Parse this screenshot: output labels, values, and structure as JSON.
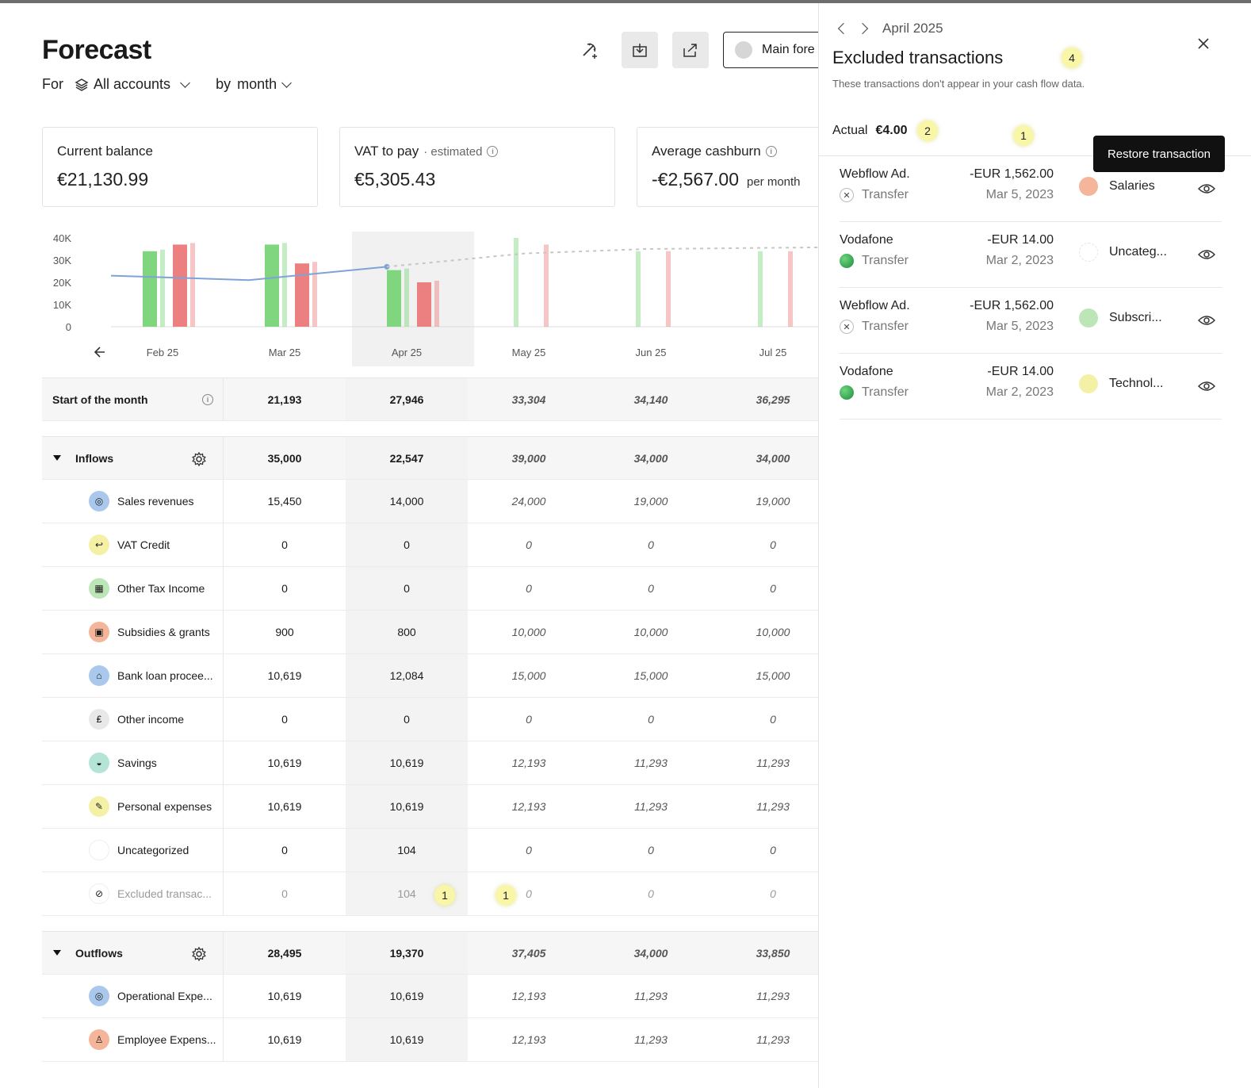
{
  "page": {
    "title": "Forecast"
  },
  "filters": {
    "for_label": "For",
    "accounts": "All accounts",
    "by_label": "by",
    "period": "month"
  },
  "toolbar": {
    "scenario": "Main fore"
  },
  "cards": {
    "balance": {
      "label": "Current balance",
      "value": "€21,130.99"
    },
    "vat": {
      "label": "VAT to pay",
      "sub": "· estimated",
      "value": "€5,305.43"
    },
    "burn": {
      "label": "Average cashburn",
      "value": "-€2,567.00",
      "per": "per month"
    }
  },
  "chart_data": {
    "type": "bar",
    "categories": [
      "Feb 25",
      "Mar 25",
      "Apr 25",
      "May 25",
      "Jun 25",
      "Jul 25"
    ],
    "y_ticks": [
      "40K",
      "30K",
      "20K",
      "10K",
      "0"
    ],
    "ylim": [
      0,
      40000
    ],
    "series": [
      {
        "values": [
          34000,
          37000,
          25500,
          40000,
          34000,
          34000
        ],
        "color": "#7fd67f"
      },
      {
        "values": [
          37000,
          28500,
          20000,
          37000,
          34000,
          34000
        ],
        "color": "#ec8080"
      }
    ],
    "balance_line": {
      "actual": [
        23000,
        21000,
        27000
      ],
      "forecast": [
        33000,
        35000,
        36000
      ]
    },
    "highlight_category": "Apr 25"
  },
  "table": {
    "start_row": {
      "label": "Start of the month",
      "values": [
        "21,193",
        "27,946",
        "33,304",
        "34,140",
        "36,295"
      ]
    },
    "inflows": {
      "label": "Inflows",
      "totals": [
        "35,000",
        "22,547",
        "39,000",
        "34,000",
        "34,000"
      ],
      "rows": [
        {
          "label": "Sales revenues",
          "icon": "target-icon",
          "color": "#a9c8ec",
          "values": [
            "15,450",
            "14,000",
            "24,000",
            "19,000",
            "19,000"
          ]
        },
        {
          "label": "VAT Credit",
          "icon": "return-icon",
          "color": "#f4f1a6",
          "values": [
            "0",
            "0",
            "0",
            "0",
            "0"
          ]
        },
        {
          "label": "Other Tax Income",
          "icon": "calculator-icon",
          "color": "#bde6b8",
          "values": [
            "0",
            "0",
            "0",
            "0",
            "0"
          ]
        },
        {
          "label": "Subsidies & grants",
          "icon": "grant-icon",
          "color": "#f4b59a",
          "values": [
            "900",
            "800",
            "10,000",
            "10,000",
            "10,000"
          ]
        },
        {
          "label": "Bank loan procee...",
          "icon": "bank-icon",
          "color": "#a9c8ec",
          "values": [
            "10,619",
            "12,084",
            "15,000",
            "15,000",
            "15,000"
          ]
        },
        {
          "label": "Other income",
          "icon": "money-bag-icon",
          "color": "#e8e8e8",
          "values": [
            "0",
            "0",
            "0",
            "0",
            "0"
          ]
        },
        {
          "label": "Savings",
          "icon": "piggy-bank-icon",
          "color": "#b4e4d6",
          "values": [
            "10,619",
            "10,619",
            "12,193",
            "11,293",
            "11,293"
          ]
        },
        {
          "label": "Personal expenses",
          "icon": "pin-icon",
          "color": "#f4f1a6",
          "values": [
            "10,619",
            "10,619",
            "12,193",
            "11,293",
            "11,293"
          ]
        },
        {
          "label": "Uncategorized",
          "icon": "empty-circle-icon",
          "color": "#ffffff",
          "values": [
            "0",
            "104",
            "0",
            "0",
            "0"
          ]
        },
        {
          "label": "Excluded transac...",
          "icon": "eye-off-icon",
          "color": "#ffffff",
          "values": [
            "0",
            "104",
            "0",
            "0",
            "0"
          ],
          "muted": true
        }
      ]
    },
    "outflows": {
      "label": "Outflows",
      "totals": [
        "28,495",
        "19,370",
        "37,405",
        "34,000",
        "33,850"
      ],
      "rows": [
        {
          "label": "Operational Expe...",
          "icon": "target-icon",
          "color": "#a9c8ec",
          "values": [
            "10,619",
            "10,619",
            "12,193",
            "11,293",
            "11,293"
          ]
        },
        {
          "label": "Employee Expens...",
          "icon": "person-icon",
          "color": "#f4b59a",
          "values": [
            "10,619",
            "10,619",
            "12,193",
            "11,293",
            "11,293"
          ]
        }
      ]
    }
  },
  "badges": {
    "b1": "1",
    "b2": "1",
    "b3": "4",
    "b4": "2",
    "b5": "1"
  },
  "panel": {
    "month": "April 2025",
    "title": "Excluded transactions",
    "description": "These transactions don't appear in your cash flow data.",
    "actual_label": "Actual",
    "actual_value": "€4.00",
    "tooltip": "Restore transaction",
    "transactions": [
      {
        "merchant": "Webflow Ad.",
        "type": "Transfer",
        "amount": "-EUR 1,562.00",
        "date": "Mar 5, 2023",
        "category": "Salaries",
        "cat_color": "#f4b59a"
      },
      {
        "merchant": "Vodafone",
        "type": "Transfer",
        "amount": "-EUR 14.00",
        "date": "Mar 2, 2023",
        "category": "Uncateg...",
        "cat_color": "#ffffff"
      },
      {
        "merchant": "Webflow Ad.",
        "type": "Transfer",
        "amount": "-EUR 1,562.00",
        "date": "Mar 5, 2023",
        "category": "Subscri...",
        "cat_color": "#bde6b8"
      },
      {
        "merchant": "Vodafone",
        "type": "Transfer",
        "amount": "-EUR 14.00",
        "date": "Mar 2, 2023",
        "category": "Technol...",
        "cat_color": "#f4f1a6"
      }
    ]
  }
}
